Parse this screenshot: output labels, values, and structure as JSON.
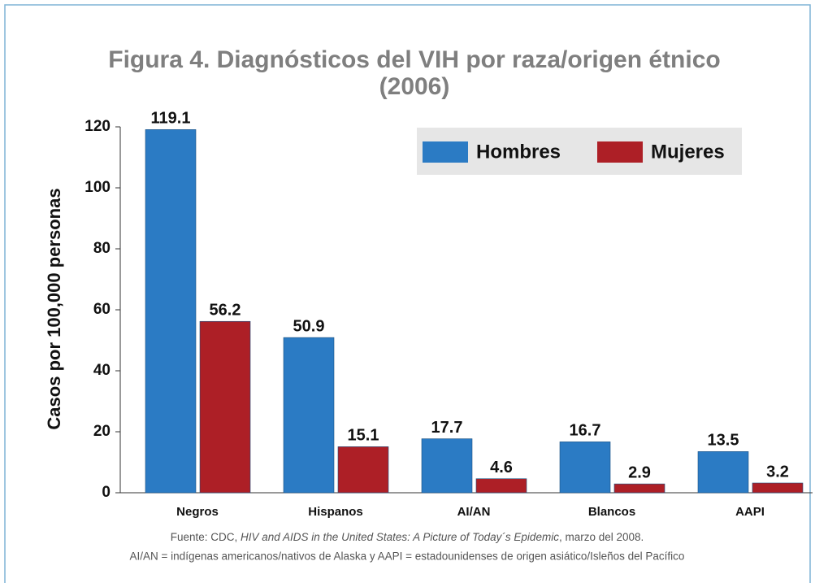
{
  "chart_data": {
    "type": "bar",
    "title": [
      "Figura 4. Diagnósticos del VIH por raza/origen étnico",
      "(2006)"
    ],
    "y_label": "Casos por 100,000 personas",
    "categories": [
      "Negros",
      "Hispanos",
      "AI/AN",
      "Blancos",
      "AAPI"
    ],
    "series": [
      {
        "name": "Hombres",
        "color": "#2b7bc4",
        "values": [
          119.1,
          50.9,
          17.7,
          16.7,
          13.5
        ]
      },
      {
        "name": "Mujeres",
        "color": "#ad1f26",
        "values": [
          56.2,
          15.1,
          4.6,
          2.9,
          3.2
        ]
      }
    ],
    "ylim": [
      0,
      120
    ],
    "yticks": [
      0,
      20,
      40,
      60,
      80,
      100,
      120
    ],
    "legend": "top-right",
    "notes": [
      [
        "Fuente: CDC, ",
        "HIV and AIDS in the United States: A Picture of Today´s Epidemic",
        ", marzo del 2008."
      ],
      [
        "AI/AN = indígenas americanos/nativos de Alaska y AAPI = estadounidenses de origen asiático/Isleños del Pacífico"
      ]
    ]
  }
}
